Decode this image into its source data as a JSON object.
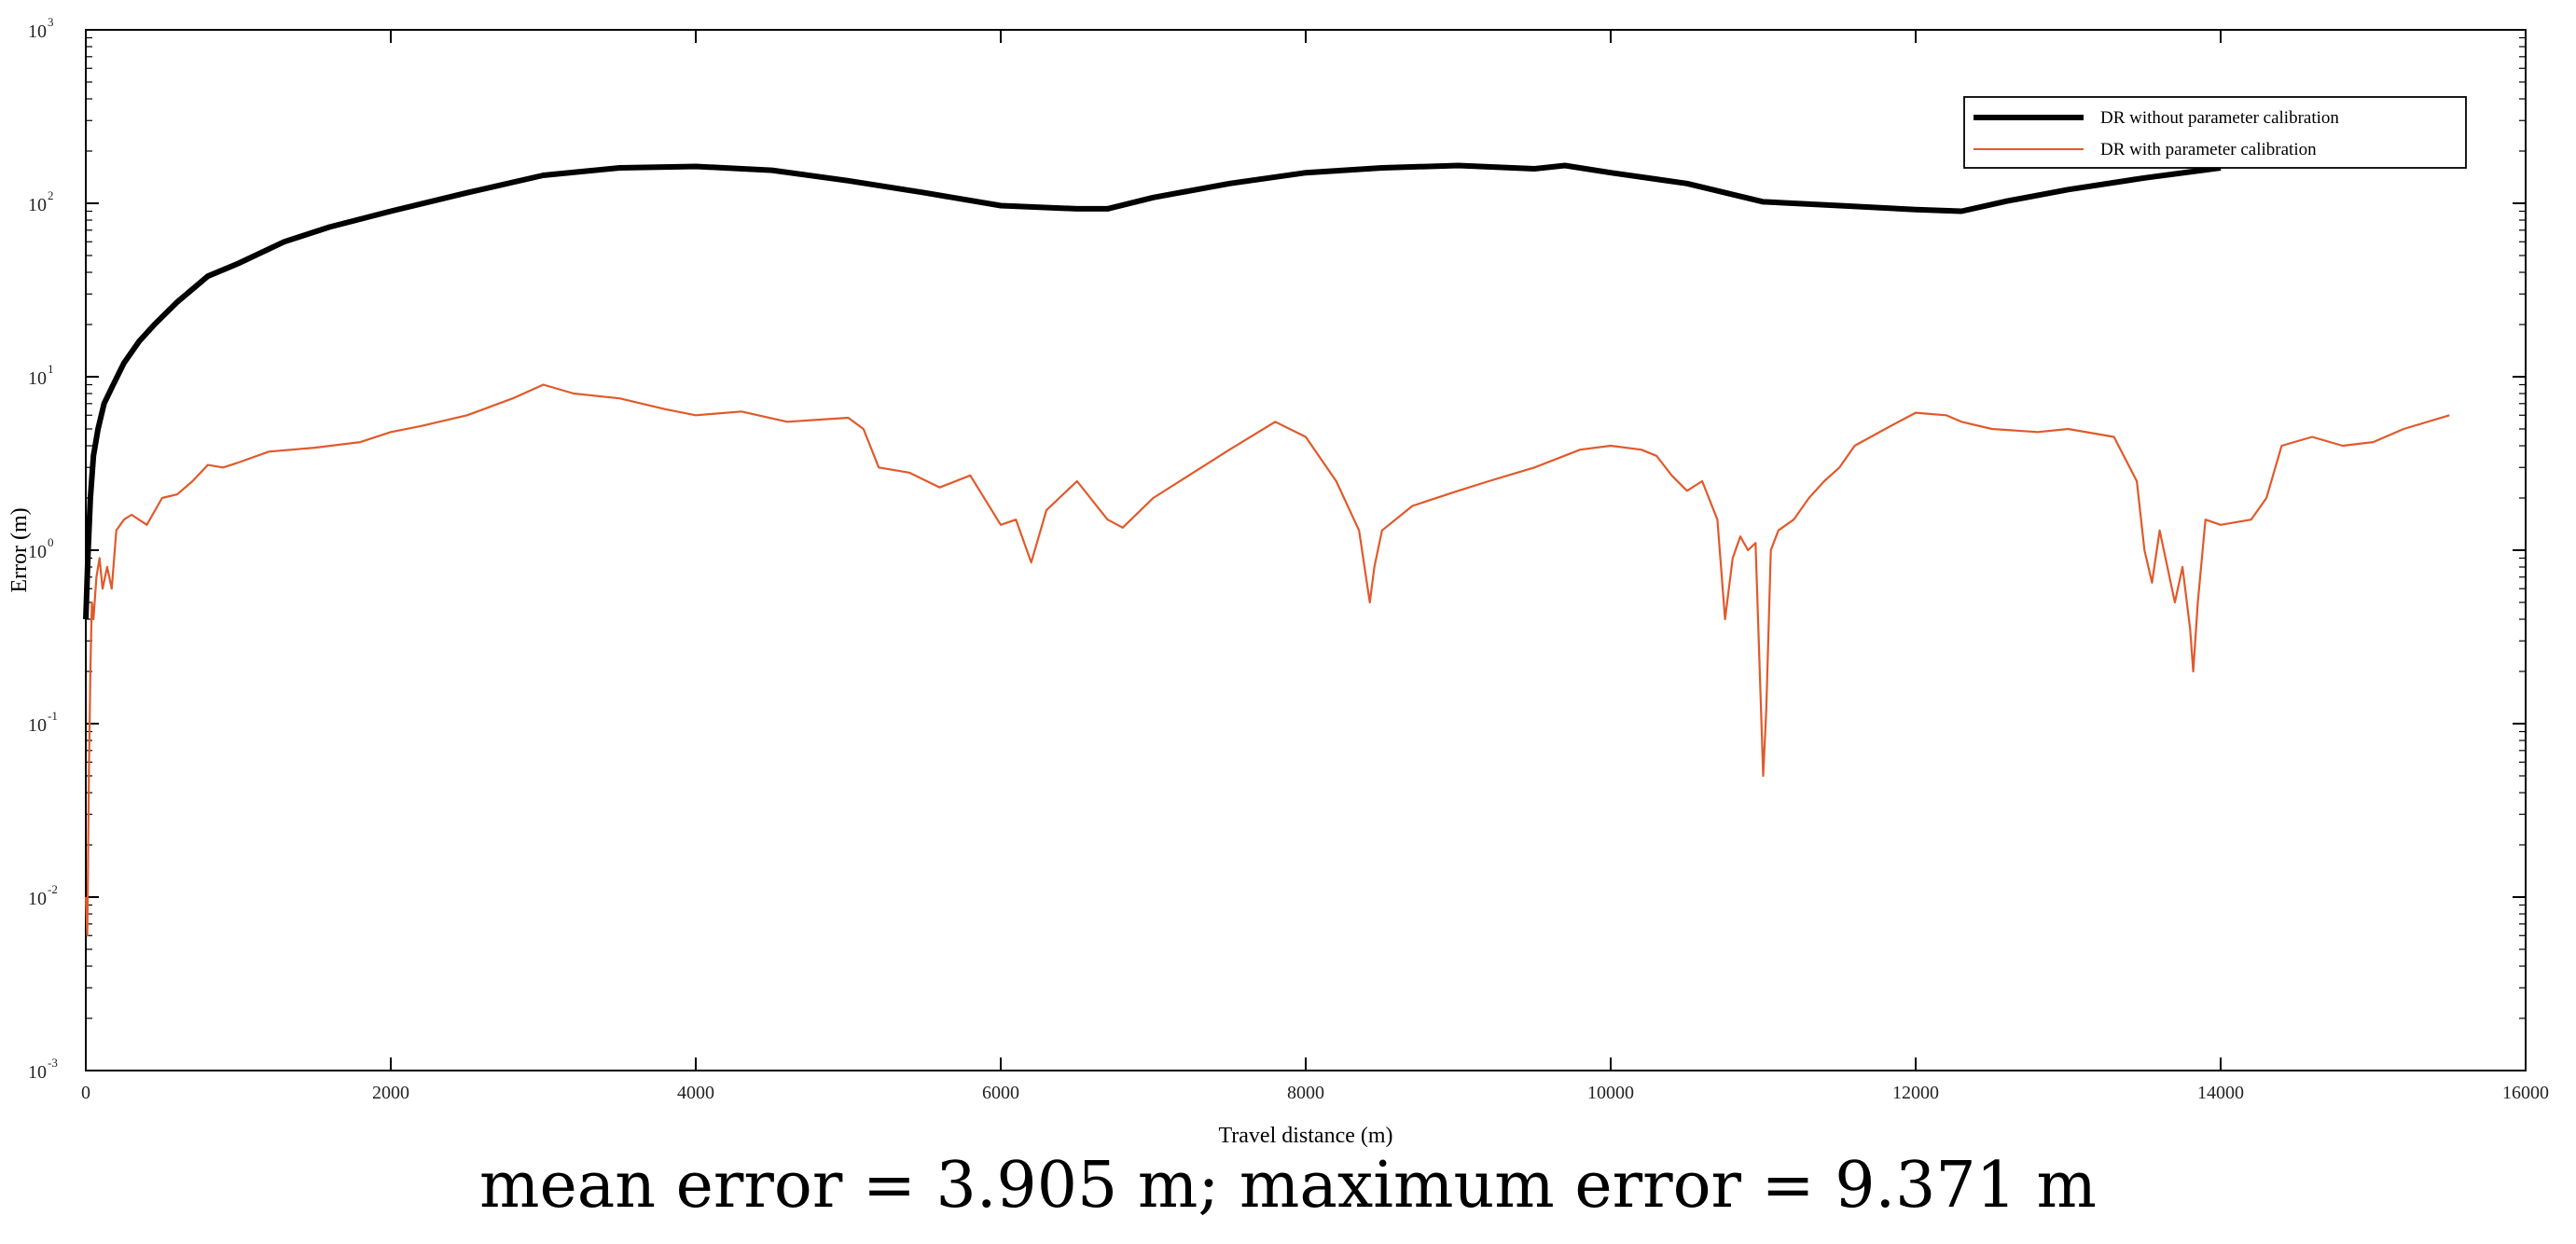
{
  "chart_data": {
    "type": "line",
    "xlabel": "Travel distance (m)",
    "ylabel": "Error (m)",
    "xlim": [
      0,
      16000
    ],
    "ylim": [
      0.001,
      1000
    ],
    "yscale": "log",
    "grid": false,
    "legend_position": "top-right",
    "x_ticks": [
      "0",
      "2000",
      "4000",
      "6000",
      "8000",
      "10000",
      "12000",
      "14000",
      "16000"
    ],
    "y_ticks": [
      {
        "base": "10",
        "exp": "-3",
        "value": 0.001
      },
      {
        "base": "10",
        "exp": "-2",
        "value": 0.01
      },
      {
        "base": "10",
        "exp": "-1",
        "value": 0.1
      },
      {
        "base": "10",
        "exp": "0",
        "value": 1
      },
      {
        "base": "10",
        "exp": "1",
        "value": 10
      },
      {
        "base": "10",
        "exp": "2",
        "value": 100
      },
      {
        "base": "10",
        "exp": "3",
        "value": 1000
      }
    ],
    "series": [
      {
        "name": "DR without parameter calibration",
        "color": "#000000",
        "x": [
          0,
          15,
          30,
          50,
          80,
          120,
          180,
          250,
          350,
          450,
          600,
          800,
          1000,
          1300,
          1600,
          2000,
          2500,
          3000,
          3500,
          4000,
          4500,
          5000,
          5500,
          6000,
          6500,
          6700,
          7000,
          7500,
          8000,
          8500,
          9000,
          9500,
          9700,
          10000,
          10500,
          11000,
          11500,
          12000,
          12300,
          12600,
          13000,
          13500,
          14000
        ],
        "y": [
          0.4,
          1.0,
          2.0,
          3.5,
          5.0,
          7.0,
          9.0,
          12,
          16,
          20,
          27,
          38,
          45,
          60,
          73,
          90,
          115,
          145,
          160,
          163,
          155,
          135,
          115,
          97,
          93,
          93,
          108,
          130,
          150,
          160,
          165,
          158,
          165,
          150,
          130,
          102,
          97,
          92,
          90,
          103,
          120,
          140,
          160
        ]
      },
      {
        "name": "DR with parameter calibration",
        "color": "#e05a2b",
        "x": [
          0,
          10,
          20,
          30,
          40,
          50,
          70,
          90,
          110,
          140,
          170,
          200,
          250,
          300,
          400,
          500,
          600,
          700,
          800,
          900,
          1000,
          1200,
          1500,
          1800,
          2000,
          2200,
          2500,
          2800,
          3000,
          3200,
          3500,
          3800,
          4000,
          4300,
          4600,
          5000,
          5100,
          5200,
          5400,
          5600,
          5800,
          6000,
          6100,
          6200,
          6300,
          6500,
          6700,
          6800,
          7000,
          7500,
          7800,
          8000,
          8200,
          8350,
          8420,
          8450,
          8500,
          8700,
          9000,
          9200,
          9500,
          9800,
          10000,
          10200,
          10300,
          10400,
          10500,
          10600,
          10700,
          10750,
          10800,
          10850,
          10900,
          10950,
          11000,
          11020,
          11050,
          11100,
          11200,
          11300,
          11400,
          11500,
          11600,
          11800,
          12000,
          12200,
          12300,
          12500,
          12800,
          13000,
          13300,
          13450,
          13500,
          13550,
          13600,
          13700,
          13750,
          13800,
          13820,
          13850,
          13900,
          14000,
          14200,
          14300,
          14400,
          14600,
          14800,
          15000,
          15200,
          15500
        ],
        "y": [
          0.01,
          0.006,
          0.05,
          0.2,
          0.5,
          0.4,
          0.7,
          0.9,
          0.6,
          0.8,
          0.6,
          1.3,
          1.5,
          1.6,
          1.4,
          2.0,
          2.1,
          2.5,
          3.1,
          3.0,
          3.2,
          3.7,
          3.9,
          4.2,
          4.8,
          5.2,
          6.0,
          7.5,
          9.0,
          8.0,
          7.5,
          6.5,
          6.0,
          6.3,
          5.5,
          5.8,
          5.0,
          3.0,
          2.8,
          2.3,
          2.7,
          1.4,
          1.5,
          0.85,
          1.7,
          2.5,
          1.5,
          1.35,
          2.0,
          3.8,
          5.5,
          4.5,
          2.5,
          1.3,
          0.5,
          0.8,
          1.3,
          1.8,
          2.2,
          2.5,
          3.0,
          3.8,
          4.0,
          3.8,
          3.5,
          2.7,
          2.2,
          2.5,
          1.5,
          0.4,
          0.9,
          1.2,
          1.0,
          1.1,
          0.05,
          0.12,
          1.0,
          1.3,
          1.5,
          2.0,
          2.5,
          3.0,
          4.0,
          5.0,
          6.2,
          6.0,
          5.5,
          5.0,
          4.8,
          5.0,
          4.5,
          2.5,
          1.0,
          0.65,
          1.3,
          0.5,
          0.8,
          0.35,
          0.2,
          0.5,
          1.5,
          1.4,
          1.5,
          2.0,
          4.0,
          4.5,
          4.0,
          4.2,
          5.0,
          6.0
        ]
      }
    ]
  },
  "caption": "mean error = 3.905 m; maximum error = 9.371 m"
}
